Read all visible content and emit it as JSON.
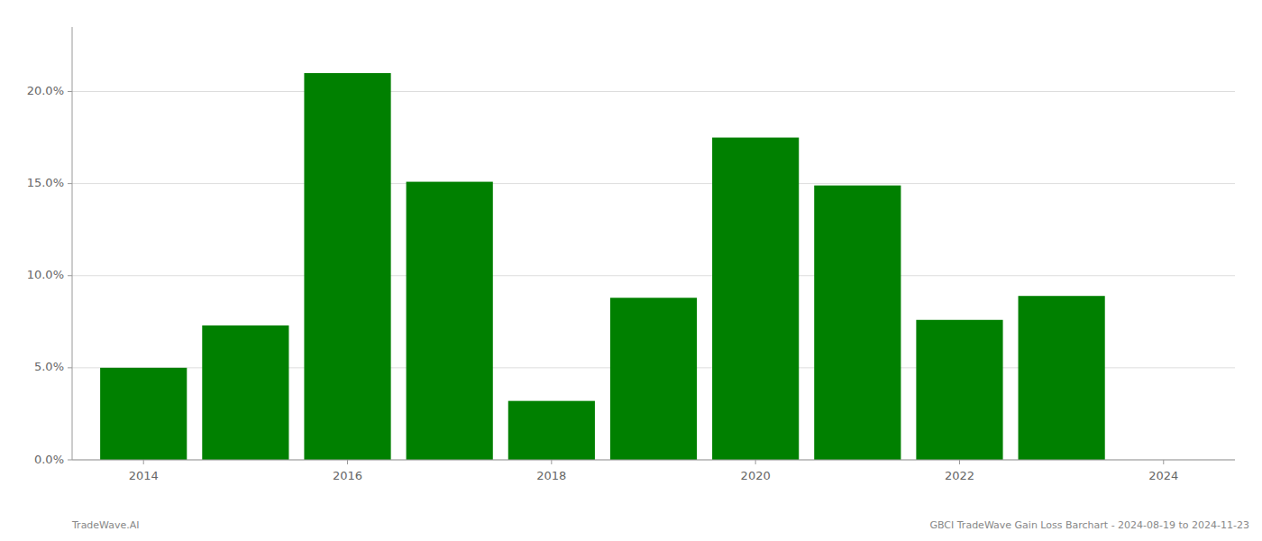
{
  "chart_data": {
    "type": "bar",
    "x": [
      2014,
      2015,
      2016,
      2017,
      2018,
      2019,
      2020,
      2021,
      2022,
      2023
    ],
    "values": [
      0.05,
      0.073,
      0.21,
      0.151,
      0.032,
      0.088,
      0.175,
      0.149,
      0.076,
      0.089
    ],
    "color": "#008000",
    "xlim": [
      2013.3,
      2024.7
    ],
    "xticks": [
      2014,
      2016,
      2018,
      2020,
      2022,
      2024
    ],
    "ylim": [
      0,
      0.235
    ],
    "yticks": [
      {
        "value": 0.0,
        "label": "0.0%"
      },
      {
        "value": 0.05,
        "label": "5.0%"
      },
      {
        "value": 0.1,
        "label": "10.0%"
      },
      {
        "value": 0.15,
        "label": "15.0%"
      },
      {
        "value": 0.2,
        "label": "20.0%"
      }
    ],
    "grid": true,
    "annotations": [
      "TradeWave.AI",
      "GBCI TradeWave Gain Loss Barchart - 2024-08-19 to 2024-11-23"
    ]
  }
}
